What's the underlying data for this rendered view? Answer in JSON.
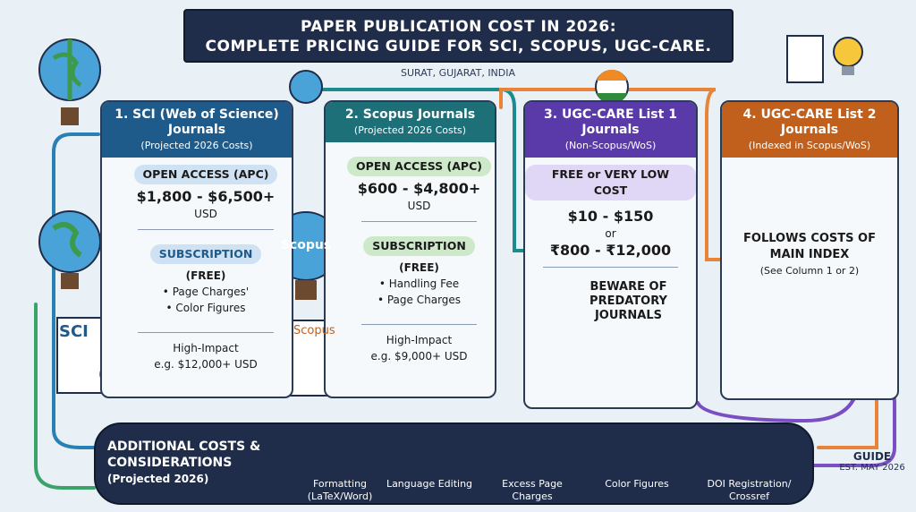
{
  "header": {
    "title_line1": "PAPER PUBLICATION COST IN 2026:",
    "title_line2": "COMPLETE PRICING GUIDE FOR SCI, SCOPUS, UGC-CARE.",
    "location": "SURAT, GUJARAT, INDIA"
  },
  "columns": [
    {
      "title": "1. SCI (Web of Science) Journals",
      "subtitle": "(Projected 2026 Costs)",
      "oa_label": "OPEN ACCESS (APC)",
      "oa_range": "$1,800 - $6,500+",
      "oa_unit": "USD",
      "sub_label": "SUBSCRIPTION",
      "sub_note": "(FREE)",
      "bullets": [
        "Page Charges'",
        "Color Figures"
      ],
      "high_label": "High-Impact",
      "high_example": "e.g. $12,000+ USD",
      "doc_label": "SCI"
    },
    {
      "title": "2. Scopus Journals",
      "subtitle": "(Projected 2026 Costs)",
      "oa_label": "OPEN ACCESS (APC)",
      "oa_range": "$600 - $4,800+",
      "oa_unit": "USD",
      "sub_label": "SUBSCRIPTION",
      "sub_note": "(FREE)",
      "bullets": [
        "Handling Fee",
        "Page Charges"
      ],
      "high_label": "High-Impact",
      "high_example": "e.g. $9,000+ USD",
      "doc_label": "Scopus",
      "globe_label": "Scopus"
    },
    {
      "title": "3. UGC-CARE List 1 Journals",
      "subtitle": "(Non-Scopus/WoS)",
      "cost_label": "FREE or VERY LOW COST",
      "usd_range": "$10 - $150",
      "or": "or",
      "inr_range": "₹800 - ₹12,000",
      "warning": "BEWARE OF PREDATORY JOURNALS"
    },
    {
      "title": "4. UGC-CARE List 2 Journals",
      "subtitle": "(Indexed in Scopus/WoS)",
      "note": "FOLLOWS COSTS OF MAIN INDEX",
      "see": "(See Column 1 or 2)"
    }
  ],
  "additional": {
    "title": "ADDITIONAL COSTS & CONSIDERATIONS",
    "subtitle": "(Projected 2026)",
    "steps": [
      "Formatting (LaTeX/Word)",
      "Language Editing",
      "Excess Page Charges",
      "Color Figures",
      "DOI Registration/ Crossref"
    ]
  },
  "footer": {
    "label": "GUIDE",
    "date": "EST. MAY 2026"
  }
}
